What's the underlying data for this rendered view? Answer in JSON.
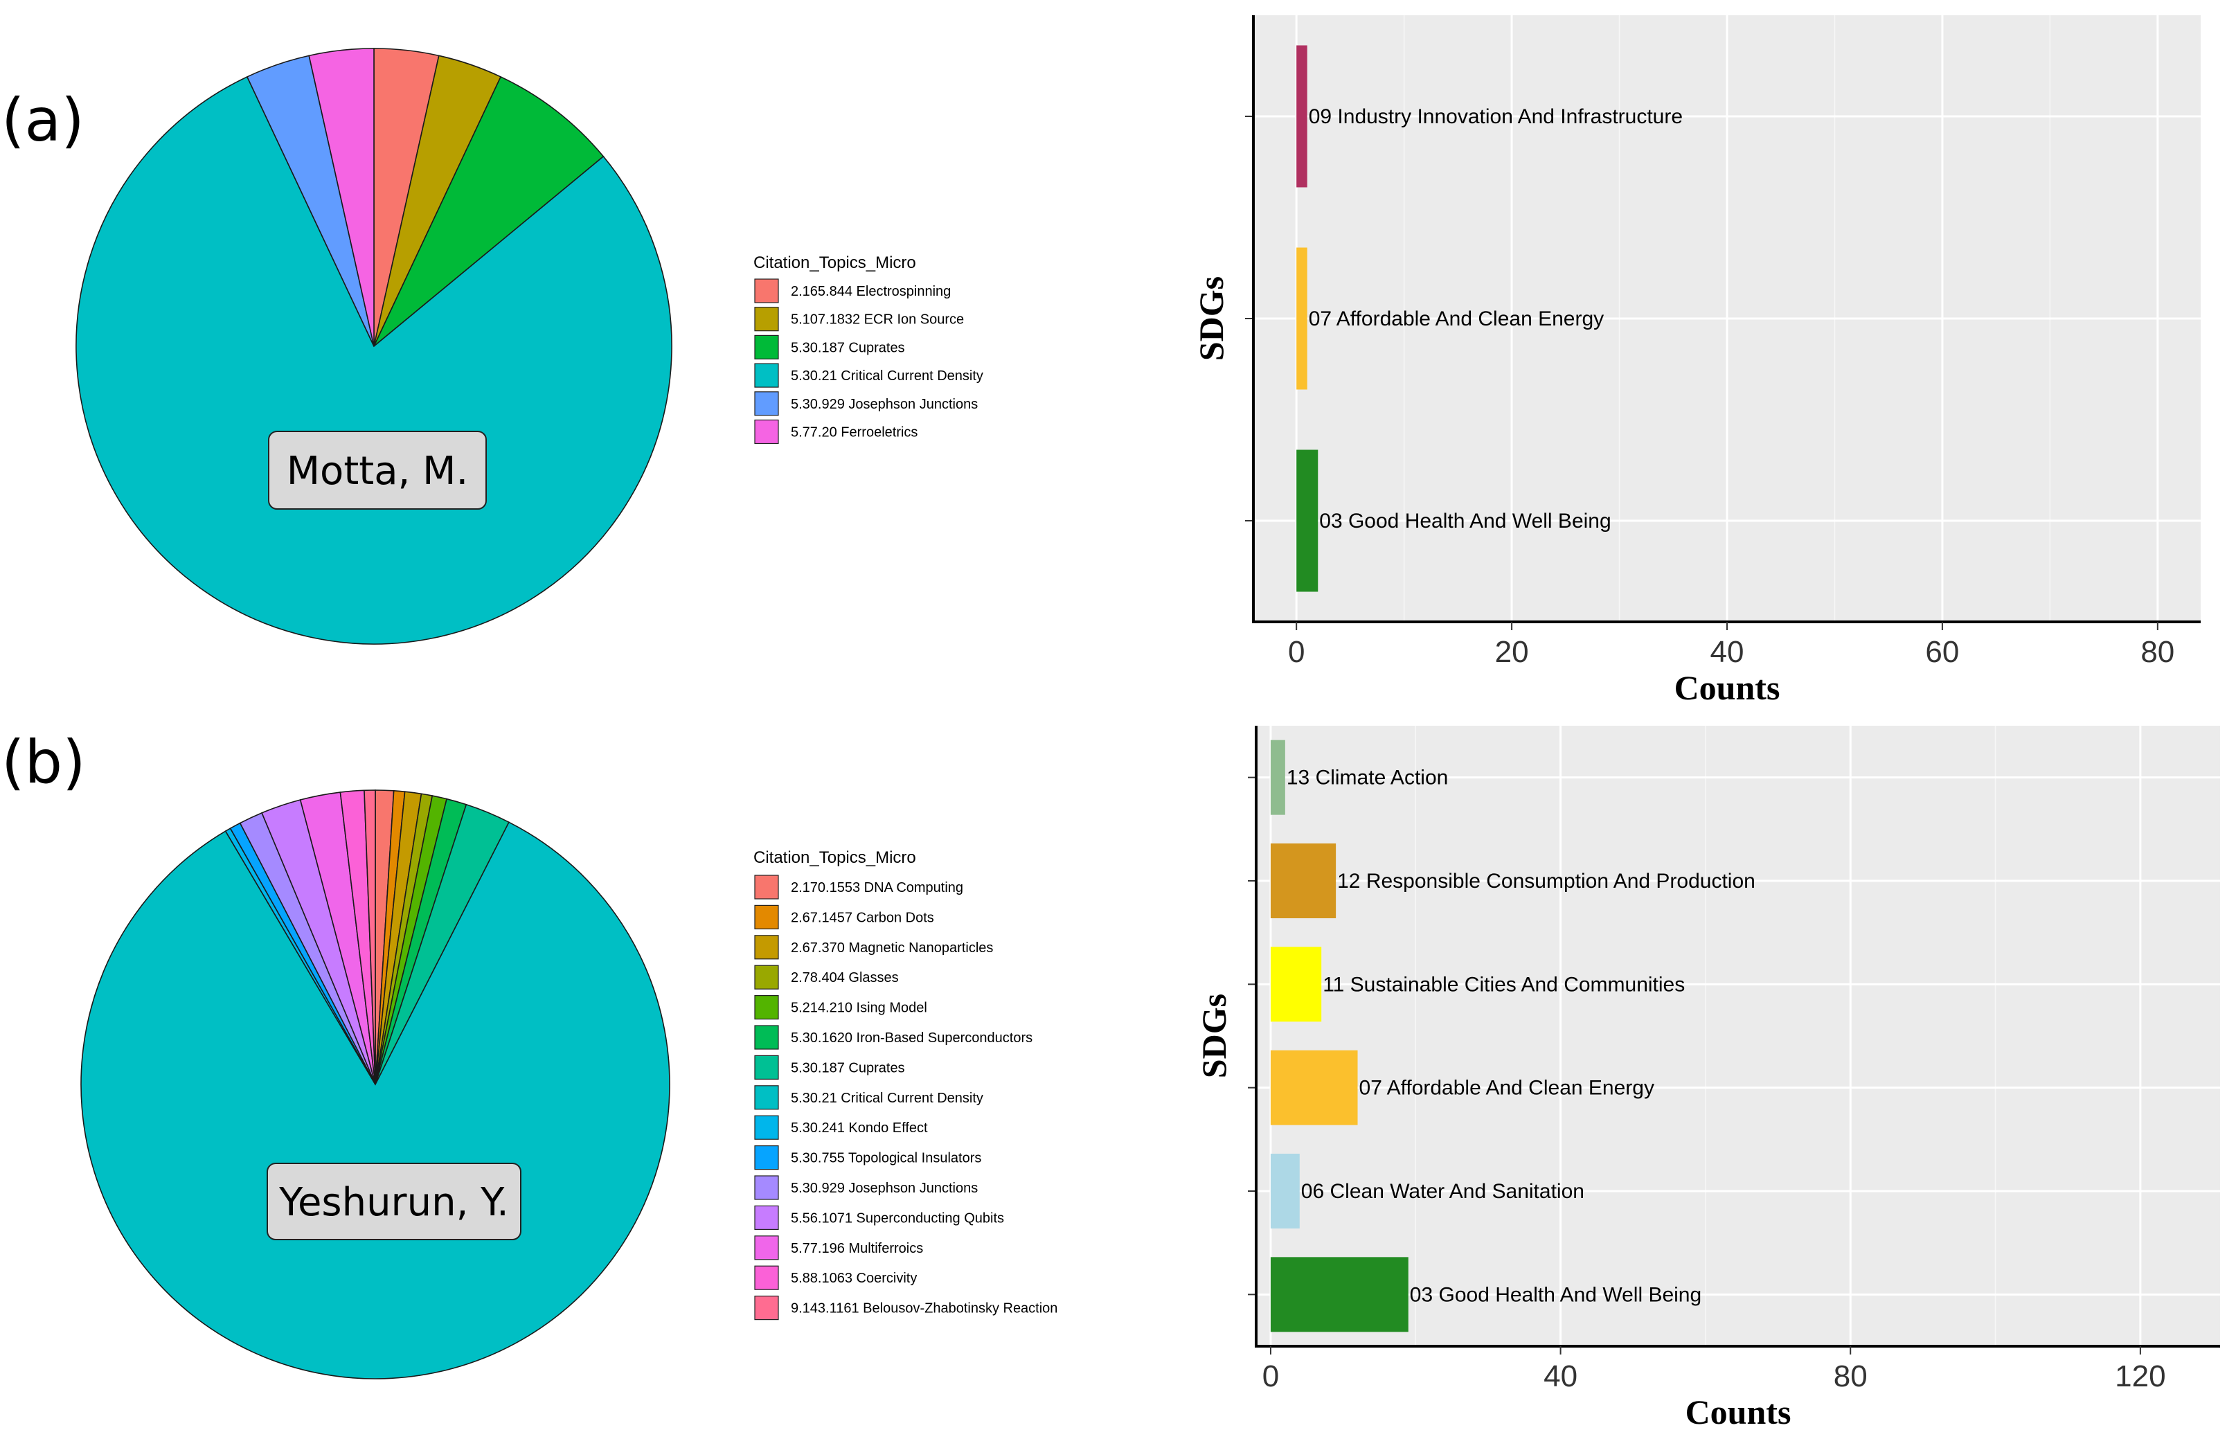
{
  "figure": {
    "panel_labels": [
      "(a)",
      "(b)"
    ],
    "author_labels": [
      "Motta, M.",
      "Yeshurun, Y."
    ]
  },
  "chart_data": [
    {
      "type": "pie",
      "panel": "(a)",
      "author": "Motta, M.",
      "legend_title": "Citation_Topics_Micro",
      "slices": [
        {
          "label": "2.165.844 Electrospinning",
          "value": 3.5,
          "color": "#F8766D"
        },
        {
          "label": "5.107.1832 ECR Ion Source",
          "value": 3.5,
          "color": "#B79F00"
        },
        {
          "label": "5.30.187 Cuprates",
          "value": 7,
          "color": "#00BA38"
        },
        {
          "label": "5.30.21 Critical Current Density",
          "value": 79,
          "color": "#00BFC4"
        },
        {
          "label": "5.30.929 Josephson Junctions",
          "value": 3.5,
          "color": "#619CFF"
        },
        {
          "label": "5.77.20 Ferroeletrics",
          "value": 3.5,
          "color": "#F564E3"
        }
      ]
    },
    {
      "type": "bar",
      "orientation": "horizontal",
      "panel": "(a)",
      "ylabel": "SDGs",
      "xlabel": "Counts",
      "xlim": [
        -4,
        84
      ],
      "xticks": [
        0,
        20,
        40,
        60,
        80
      ],
      "categories": [
        "09 Industry Innovation And Infrastructure",
        "07 Affordable And Clean Energy",
        "03 Good Health And Well Being"
      ],
      "values": [
        1,
        1,
        2
      ],
      "colors": [
        "#B03060",
        "#FBC02D",
        "#228B22"
      ]
    },
    {
      "type": "pie",
      "panel": "(b)",
      "author": "Yeshurun, Y.",
      "legend_title": "Citation_Topics_Micro",
      "slices": [
        {
          "label": "2.170.1553 DNA Computing",
          "value": 1,
          "color": "#F8766D"
        },
        {
          "label": "2.67.1457 Carbon Dots",
          "value": 0.6,
          "color": "#E38900"
        },
        {
          "label": "2.67.370 Magnetic Nanoparticles",
          "value": 0.9,
          "color": "#C49A00"
        },
        {
          "label": "2.78.404 Glasses",
          "value": 0.6,
          "color": "#99A800"
        },
        {
          "label": "5.214.210 Ising Model",
          "value": 0.8,
          "color": "#53B400"
        },
        {
          "label": "5.30.1620 Iron-Based Superconductors",
          "value": 1.1,
          "color": "#00BC56"
        },
        {
          "label": "5.30.187 Cuprates",
          "value": 2.5,
          "color": "#00C094"
        },
        {
          "label": "5.30.21 Critical Current Density",
          "value": 84,
          "color": "#00BFC4"
        },
        {
          "label": "5.30.241 Kondo Effect",
          "value": 0.3,
          "color": "#00B6EB"
        },
        {
          "label": "5.30.755 Topological Insulators",
          "value": 0.6,
          "color": "#06A4FF"
        },
        {
          "label": "5.30.929 Josephson Junctions",
          "value": 1.3,
          "color": "#A58AFF"
        },
        {
          "label": "5.56.1071 Superconducting Qubits",
          "value": 2.2,
          "color": "#C77CFF"
        },
        {
          "label": "5.77.196 Multiferroics",
          "value": 2.2,
          "color": "#F066EA"
        },
        {
          "label": "5.88.1063 Coercivity",
          "value": 1.3,
          "color": "#FB61D7"
        },
        {
          "label": "9.143.1161 Belousov-Zhabotinsky Reaction",
          "value": 0.6,
          "color": "#FF6C91"
        }
      ]
    },
    {
      "type": "bar",
      "orientation": "horizontal",
      "panel": "(b)",
      "ylabel": "SDGs",
      "xlabel": "Counts",
      "xlim": [
        -2,
        131
      ],
      "xticks": [
        0,
        40,
        80,
        120
      ],
      "categories": [
        "13 Climate Action",
        "12 Responsible Consumption And Production",
        "11 Sustainable Cities And Communities",
        "07 Affordable And Clean Energy",
        "06 Clean Water And Sanitation",
        "03 Good Health And Well Being"
      ],
      "values": [
        2,
        9,
        7,
        12,
        4,
        19
      ],
      "colors": [
        "#8FBC8F",
        "#D4961E",
        "#FFFF00",
        "#FBC02D",
        "#ADD8E6",
        "#228B22"
      ]
    }
  ]
}
